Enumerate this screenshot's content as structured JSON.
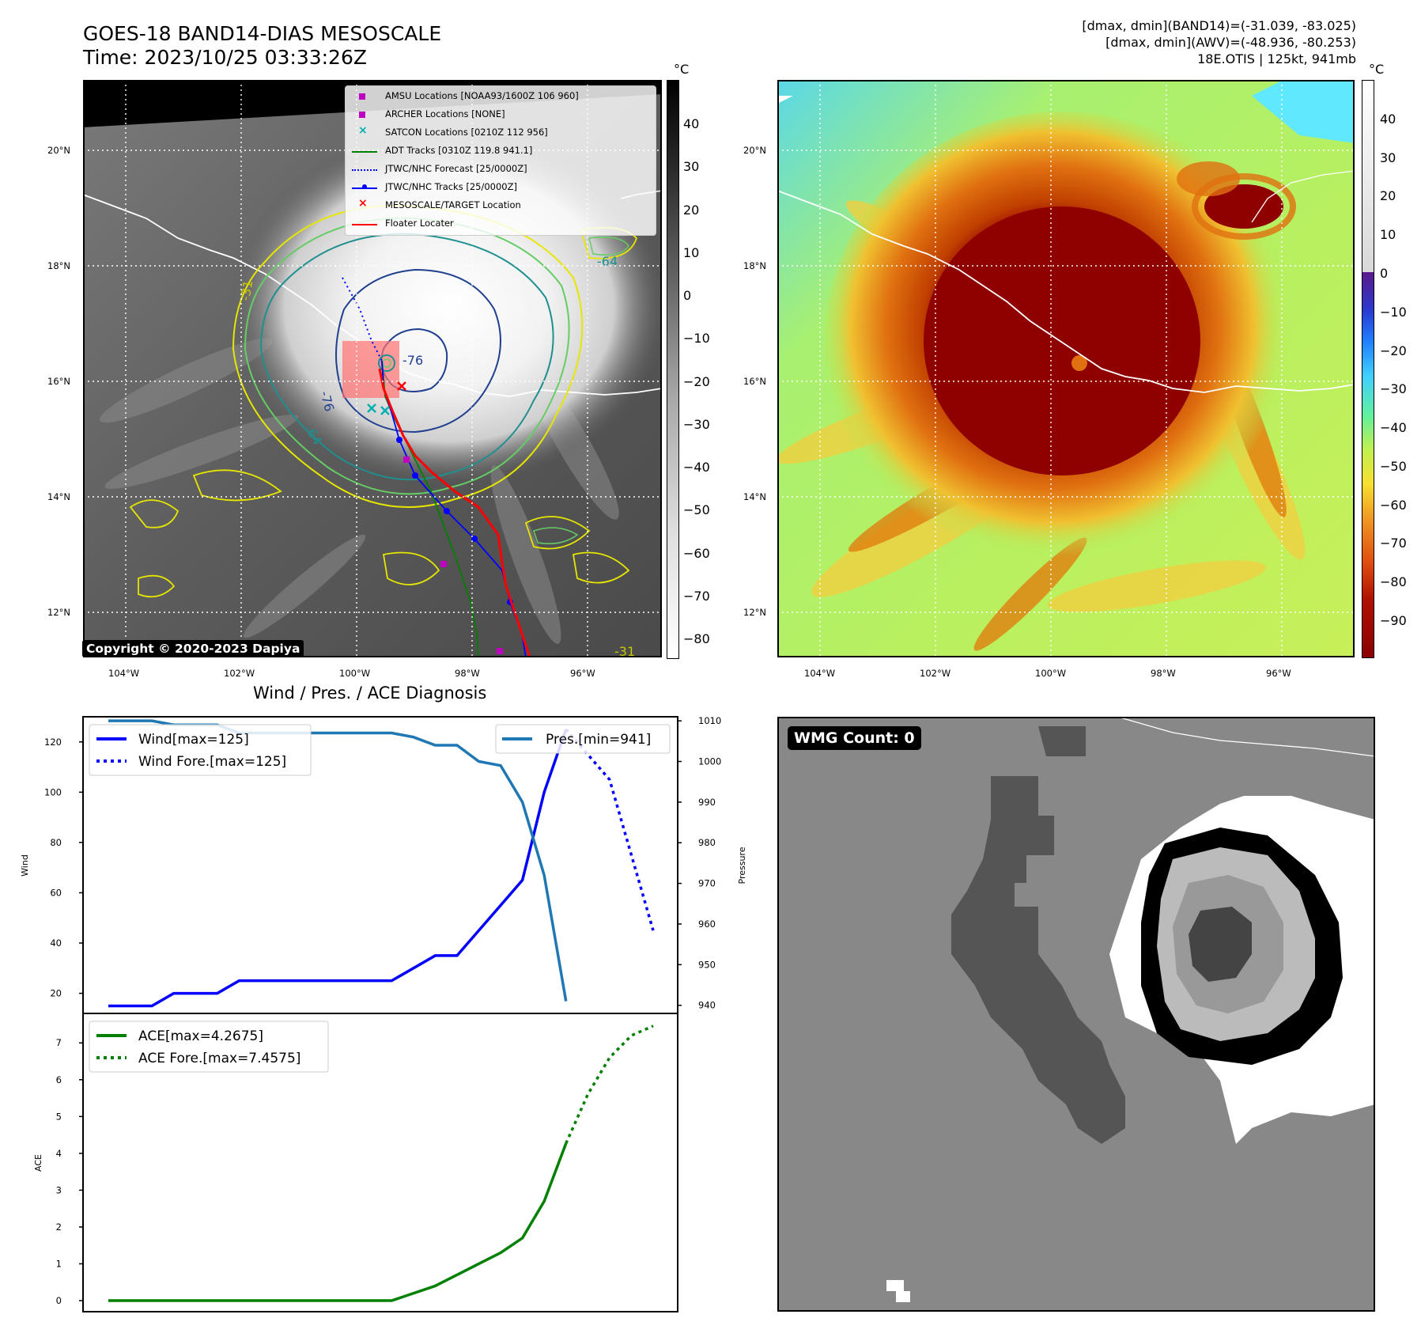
{
  "header": {
    "title_line1": "GOES-18 BAND14-DIAS MESOSCALE",
    "title_line2": "Time: 2023/10/25 03:33:26Z",
    "right_line1": "[dmax, dmin](BAND14)=(-31.039, -83.025)",
    "right_line2": "[dmax, dmin](AWV)=(-48.936, -80.253)",
    "right_line3": "18E.OTIS | 125kt, 941mb"
  },
  "ir_panel": {
    "lat_labels": [
      "20°N",
      "18°N",
      "16°N",
      "14°N",
      "12°N"
    ],
    "lon_labels": [
      "104°W",
      "102°W",
      "100°W",
      "98°W",
      "96°W"
    ],
    "copyright": "Copyright © 2020-2023 Dapiya",
    "contour_labels": [
      "-76",
      "-76",
      "-64",
      "-64",
      "-31",
      "-31"
    ],
    "legend": [
      {
        "label": "AMSU Locations [NOAA93/1600Z 106 960]",
        "color": "#c000c0",
        "marker": "square"
      },
      {
        "label": "ARCHER Locations [NONE]",
        "color": "#c000c0",
        "marker": "square"
      },
      {
        "label": "SATCON Locations [0210Z 112 956]",
        "color": "#00b0b0",
        "marker": "x"
      },
      {
        "label": "ADT Tracks [0310Z 119.8 941.1]",
        "color": "#008000",
        "marker": "line"
      },
      {
        "label": "JTWC/NHC Forecast [25/0000Z]",
        "color": "#0000ff",
        "marker": "dotted"
      },
      {
        "label": "JTWC/NHC Tracks [25/0000Z]",
        "color": "#0000ff",
        "marker": "line-dot"
      },
      {
        "label": "MESOSCALE/TARGET Location",
        "color": "#ff0000",
        "marker": "x"
      },
      {
        "label": "Floater Locater",
        "color": "#ff0000",
        "marker": "line"
      }
    ]
  },
  "colorbar_left": {
    "unit": "°C",
    "ticks": [
      "40",
      "30",
      "20",
      "10",
      "0",
      "−10",
      "−20",
      "−30",
      "−40",
      "−50",
      "−60",
      "−70",
      "−80"
    ]
  },
  "colorbar_right": {
    "unit": "°C",
    "ticks": [
      "40",
      "30",
      "20",
      "10",
      "0",
      "−10",
      "−20",
      "−30",
      "−40",
      "−50",
      "−60",
      "−70",
      "−80",
      "−90"
    ]
  },
  "rgb_panel": {
    "lat_labels": [
      "20°N",
      "18°N",
      "16°N",
      "14°N",
      "12°N"
    ],
    "lon_labels": [
      "104°W",
      "102°W",
      "100°W",
      "98°W",
      "96°W"
    ]
  },
  "wmg_panel": {
    "label": "WMG Count: 0"
  },
  "colors": {
    "wind": "#0000ff",
    "pressure": "#1f77b4",
    "ace": "#008000"
  },
  "chart_data": [
    {
      "type": "line",
      "title": "Wind / Pres. / ACE Diagnosis",
      "ylabel": "Wind",
      "ylabel_right": "Pressure",
      "ylim": [
        12,
        130
      ],
      "ylim_right": [
        938,
        1011
      ],
      "y_ticks": [
        20,
        40,
        60,
        80,
        100,
        120
      ],
      "y_ticks_right": [
        940,
        950,
        960,
        970,
        980,
        990,
        1000,
        1010
      ],
      "series": [
        {
          "name": "Wind[max=125]",
          "axis": "left",
          "style": "solid",
          "color": "#0000ff",
          "x": [
            0,
            2,
            3,
            5,
            6,
            10,
            13,
            14,
            15,
            16,
            17,
            18,
            19,
            20,
            21
          ],
          "values": [
            15,
            15,
            20,
            20,
            25,
            25,
            25,
            30,
            35,
            35,
            45,
            55,
            65,
            100,
            125
          ]
        },
        {
          "name": "Wind Fore.[max=125]",
          "axis": "left",
          "style": "dotted",
          "color": "#0000ff",
          "x": [
            21,
            22,
            23,
            24,
            25
          ],
          "values": [
            125,
            115,
            105,
            75,
            45
          ]
        },
        {
          "name": "Pres.[min=941]",
          "axis": "right",
          "style": "solid",
          "color": "#1f77b4",
          "x": [
            0,
            2,
            3,
            5,
            6,
            10,
            13,
            14,
            15,
            16,
            17,
            18,
            19,
            20,
            21
          ],
          "values": [
            1010,
            1010,
            1009,
            1009,
            1007,
            1007,
            1007,
            1006,
            1004,
            1004,
            1000,
            999,
            990,
            972,
            941
          ]
        }
      ]
    },
    {
      "type": "line",
      "ylabel": "ACE",
      "ylim": [
        -0.3,
        7.8
      ],
      "y_ticks": [
        0,
        1,
        2,
        3,
        4,
        5,
        6,
        7
      ],
      "series": [
        {
          "name": "ACE[max=4.2675]",
          "style": "solid",
          "color": "#008000",
          "x": [
            0,
            13,
            14,
            15,
            16,
            17,
            18,
            19,
            20,
            21
          ],
          "values": [
            0,
            0,
            0.2,
            0.4,
            0.7,
            1.0,
            1.3,
            1.7,
            2.7,
            4.27
          ]
        },
        {
          "name": "ACE Fore.[max=7.4575]",
          "style": "dotted",
          "color": "#008000",
          "x": [
            21,
            22,
            23,
            24,
            25
          ],
          "values": [
            4.27,
            5.6,
            6.6,
            7.2,
            7.46
          ]
        }
      ]
    }
  ]
}
